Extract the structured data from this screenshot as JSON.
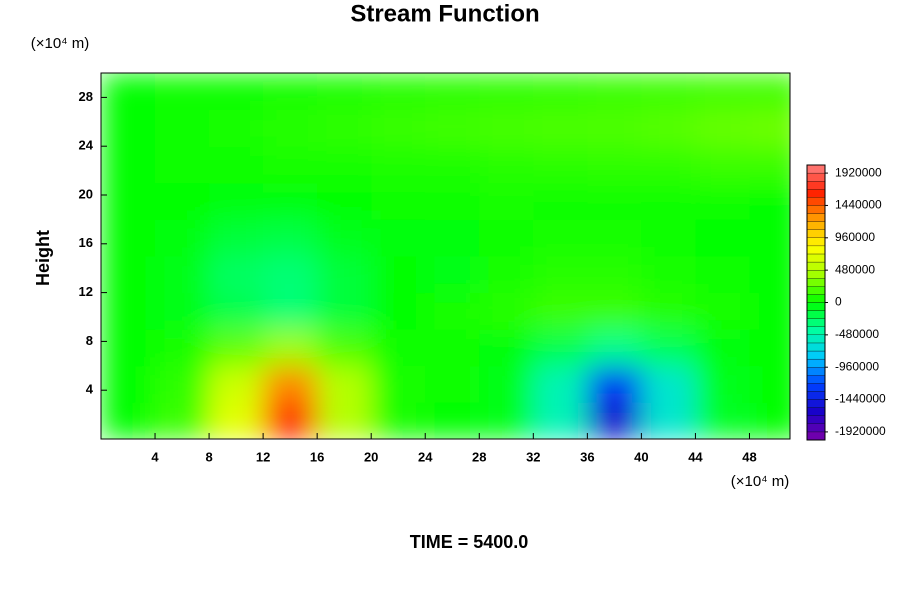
{
  "chart_data": {
    "type": "contour",
    "title": "Stream Function",
    "y_label": "Height",
    "y_unit": "(×10⁴ m)",
    "x_unit": "(×10⁴ m)",
    "footer": "TIME = 5400.0",
    "xlim": [
      0,
      51
    ],
    "ylim": [
      0,
      30
    ],
    "xticks": [
      4,
      8,
      12,
      16,
      20,
      24,
      28,
      32,
      36,
      40,
      44,
      48
    ],
    "yticks": [
      4,
      8,
      12,
      16,
      20,
      24,
      28
    ],
    "clim": [
      -2040000,
      2040000
    ],
    "cticks": [
      -1920000,
      -1440000,
      -960000,
      -480000,
      0,
      480000,
      960000,
      1440000,
      1920000
    ],
    "colormap": [
      "#7b00a8",
      "#1a00c8",
      "#0040ff",
      "#00c8ff",
      "#00ffa0",
      "#00ff00",
      "#a0ff00",
      "#ffff00",
      "#ffa000",
      "#ff2000",
      "#ff8080"
    ],
    "x": [
      2,
      6,
      10,
      14,
      18,
      22,
      26,
      30,
      34,
      38,
      42,
      46,
      50
    ],
    "y": [
      1.5,
      4.5,
      7.5,
      10.5,
      13.5,
      16.5,
      19.5,
      22.5,
      25.5,
      28.5
    ],
    "z": [
      [
        0,
        150000,
        700000,
        1600000,
        500000,
        50000,
        0,
        -50000,
        -500000,
        -1600000,
        -600000,
        -100000,
        0
      ],
      [
        0,
        120000,
        600000,
        1300000,
        500000,
        60000,
        20000,
        -60000,
        -500000,
        -1300000,
        -600000,
        -80000,
        0
      ],
      [
        0,
        50000,
        250000,
        400000,
        200000,
        40000,
        20000,
        -20000,
        -200000,
        -350000,
        -220000,
        -40000,
        0
      ],
      [
        0,
        -50000,
        -200000,
        -300000,
        -150000,
        0,
        50000,
        100000,
        150000,
        150000,
        100000,
        50000,
        0
      ],
      [
        0,
        -60000,
        -250000,
        -300000,
        -150000,
        0,
        -50000,
        60000,
        100000,
        100000,
        60000,
        30000,
        0
      ],
      [
        0,
        -30000,
        -150000,
        -180000,
        -80000,
        -20000,
        -20000,
        40000,
        60000,
        50000,
        30000,
        10000,
        0
      ],
      [
        0,
        0,
        -20000,
        -30000,
        0,
        20000,
        30000,
        50000,
        40000,
        40000,
        30000,
        20000,
        0
      ],
      [
        0,
        20000,
        40000,
        50000,
        60000,
        70000,
        80000,
        100000,
        110000,
        120000,
        120000,
        150000,
        150000
      ],
      [
        0,
        30000,
        60000,
        100000,
        120000,
        140000,
        160000,
        180000,
        190000,
        200000,
        220000,
        260000,
        280000
      ],
      [
        0,
        20000,
        40000,
        60000,
        80000,
        100000,
        110000,
        120000,
        130000,
        140000,
        150000,
        160000,
        160000
      ]
    ]
  }
}
